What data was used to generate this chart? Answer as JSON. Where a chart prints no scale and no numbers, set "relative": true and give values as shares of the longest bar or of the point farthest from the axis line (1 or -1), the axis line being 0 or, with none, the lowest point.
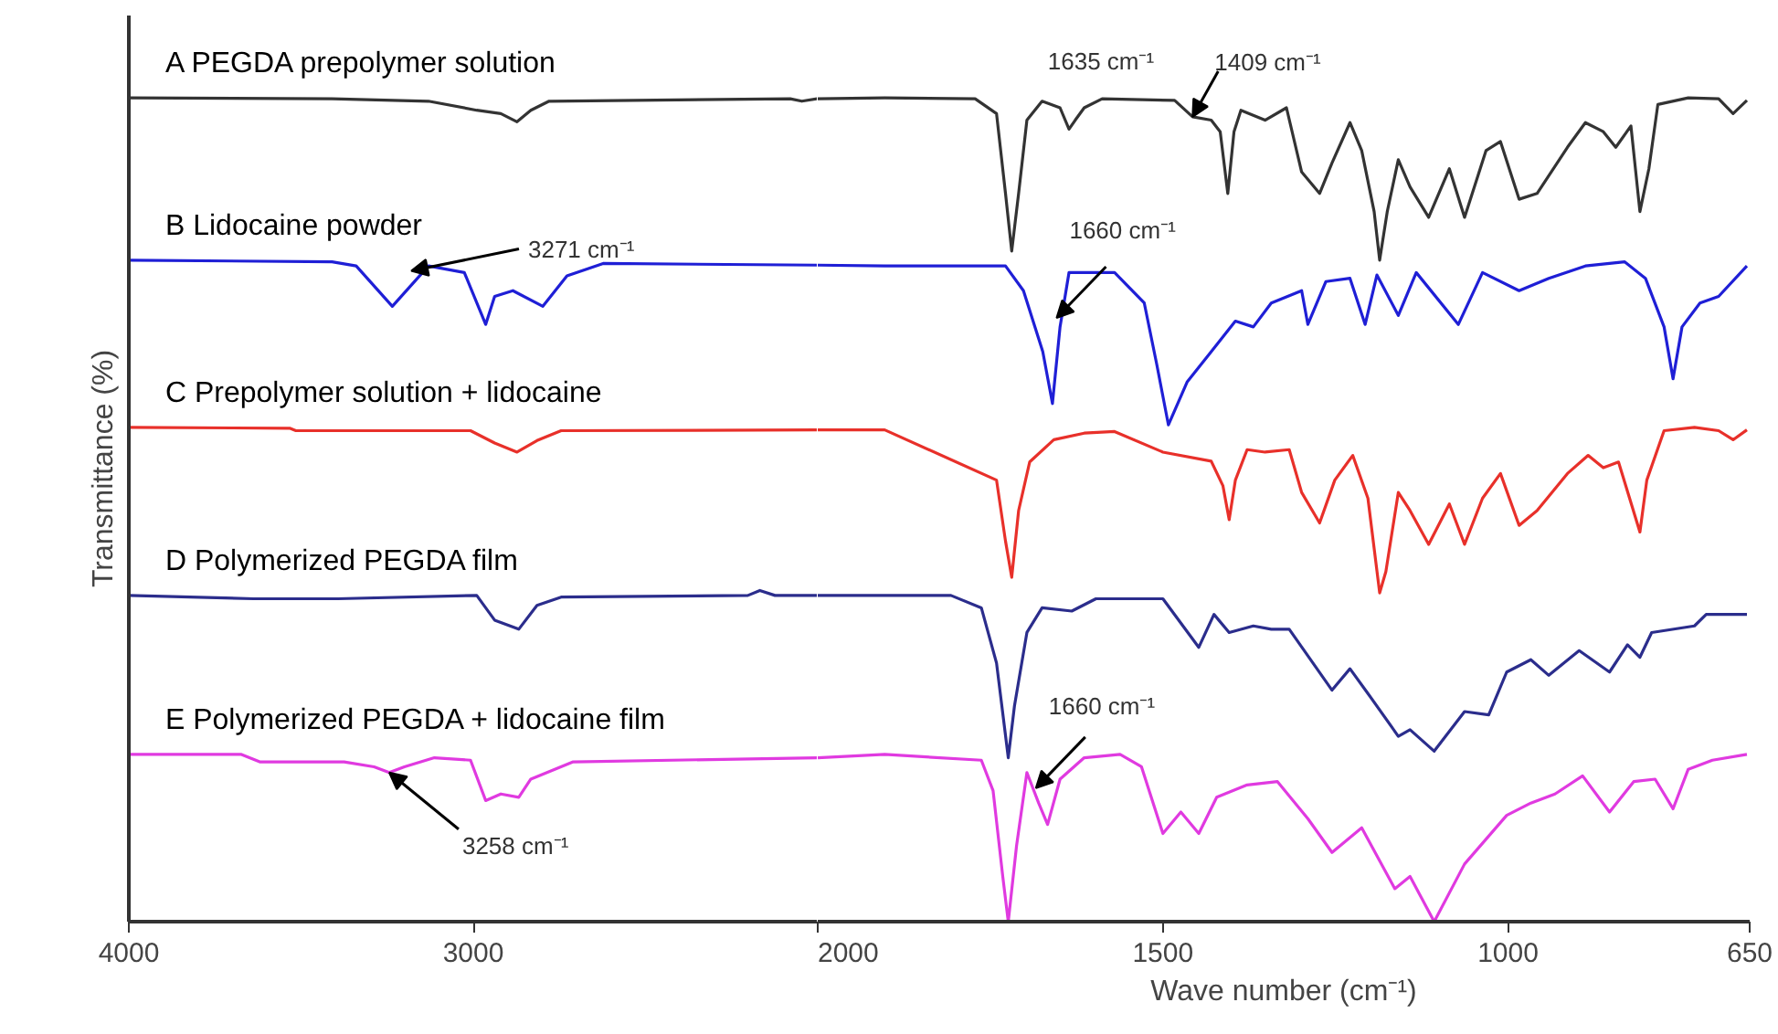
{
  "chart_data": [
    {
      "type": "line",
      "ylabel": "Transmittance (%)",
      "relative": true,
      "xlim": [
        4000,
        2000
      ],
      "xticks": [
        4000,
        3000
      ],
      "grid": false,
      "legend": false,
      "marker": "none",
      "line_style": "solid",
      "series": [
        {
          "name": "A  PEGDA prepolymer solution",
          "color": "#333333",
          "x": [
            4000,
            3410,
            3130,
            2990,
            2920,
            2873,
            2833,
            2780,
            2080,
            2046,
            2000
          ],
          "values": [
            1.0,
            0.999,
            0.996,
            0.985,
            0.981,
            0.971,
            0.985,
            0.996,
            0.999,
            0.996,
            0.999
          ]
        },
        {
          "name": "B  Lidocaine powder",
          "color": "#1f1fd6",
          "x": [
            4000,
            3410,
            3340,
            3235,
            3130,
            3026,
            2964,
            2938,
            2885,
            2798,
            2728,
            2623,
            2000
          ],
          "values": [
            0.803,
            0.801,
            0.796,
            0.747,
            0.796,
            0.788,
            0.725,
            0.759,
            0.766,
            0.747,
            0.784,
            0.799,
            0.797
          ]
        },
        {
          "name": "C  Prepolymer solution + lidocaine",
          "color": "#e8302a",
          "x": [
            4000,
            3533,
            3515,
            3008,
            2938,
            2873,
            2815,
            2745,
            2000
          ],
          "values": [
            0.6,
            0.599,
            0.596,
            0.596,
            0.581,
            0.57,
            0.584,
            0.596,
            0.597
          ]
        },
        {
          "name": "D  Polymerized PEGDA film",
          "color": "#2b2d8c",
          "x": [
            4000,
            3638,
            3393,
            2990,
            2938,
            2868,
            2815,
            2745,
            2203,
            2168,
            2124,
            2000
          ],
          "values": [
            0.396,
            0.392,
            0.392,
            0.396,
            0.366,
            0.355,
            0.384,
            0.394,
            0.396,
            0.402,
            0.396,
            0.396
          ]
        },
        {
          "name": "E  Polymerized PEGDA + lidocaine film",
          "color": "#e03ae0",
          "x": [
            4000,
            3673,
            3620,
            3375,
            3288,
            3244,
            3200,
            3113,
            3008,
            2964,
            2920,
            2868,
            2833,
            2710,
            2000
          ],
          "values": [
            0.203,
            0.203,
            0.194,
            0.194,
            0.188,
            0.181,
            0.188,
            0.199,
            0.196,
            0.147,
            0.155,
            0.151,
            0.173,
            0.194,
            0.199
          ]
        }
      ],
      "annotations": [
        {
          "text": "3271 cm⁻¹",
          "x": 3180,
          "y": 0.79
        },
        {
          "text": "3258 cm⁻¹",
          "x": 3244,
          "y": 0.181
        }
      ]
    },
    {
      "type": "line",
      "xlabel": "Wave number (cm⁻¹)",
      "relative": true,
      "xlim": [
        2000,
        650
      ],
      "xticks": [
        2000,
        1500,
        1000,
        650
      ],
      "grid": false,
      "legend": false,
      "marker": "none",
      "line_style": "solid",
      "series": [
        {
          "color": "#333333",
          "x": [
            2000,
            1903,
            1772,
            1741,
            1728,
            1719,
            1709,
            1697,
            1675,
            1649,
            1636,
            1627,
            1614,
            1588,
            1483,
            1457,
            1430,
            1417,
            1406,
            1397,
            1387,
            1352,
            1321,
            1299,
            1273,
            1255,
            1229,
            1212,
            1194,
            1186,
            1175,
            1159,
            1142,
            1115,
            1085,
            1063,
            1032,
            1011,
            984,
            958,
            914,
            888,
            862,
            844,
            822,
            809,
            796,
            783,
            739,
            695,
            674,
            654
          ],
          "values": [
            0.999,
            1.0,
            0.999,
            0.981,
            0.884,
            0.814,
            0.884,
            0.973,
            0.996,
            0.988,
            0.962,
            0.973,
            0.988,
            0.999,
            0.997,
            0.977,
            0.973,
            0.959,
            0.884,
            0.959,
            0.985,
            0.973,
            0.988,
            0.91,
            0.884,
            0.921,
            0.97,
            0.936,
            0.862,
            0.803,
            0.862,
            0.925,
            0.892,
            0.855,
            0.914,
            0.855,
            0.936,
            0.947,
            0.877,
            0.884,
            0.94,
            0.97,
            0.959,
            0.94,
            0.966,
            0.862,
            0.914,
            0.992,
            1.0,
            0.999,
            0.981,
            0.997
          ]
        },
        {
          "color": "#1f1fd6",
          "x": [
            2000,
            1903,
            1728,
            1702,
            1674,
            1660,
            1649,
            1636,
            1570,
            1527,
            1509,
            1492,
            1465,
            1430,
            1395,
            1369,
            1343,
            1299,
            1290,
            1264,
            1229,
            1207,
            1190,
            1159,
            1133,
            1072,
            1037,
            984,
            941,
            888,
            831,
            801,
            774,
            761,
            748,
            722,
            695,
            654
          ],
          "values": [
            0.797,
            0.796,
            0.796,
            0.766,
            0.692,
            0.629,
            0.722,
            0.788,
            0.788,
            0.751,
            0.677,
            0.603,
            0.655,
            0.692,
            0.729,
            0.722,
            0.751,
            0.766,
            0.725,
            0.777,
            0.781,
            0.725,
            0.785,
            0.736,
            0.788,
            0.725,
            0.788,
            0.766,
            0.781,
            0.796,
            0.801,
            0.781,
            0.722,
            0.659,
            0.722,
            0.751,
            0.759,
            0.796
          ]
        },
        {
          "color": "#e8302a",
          "x": [
            2000,
            1903,
            1741,
            1728,
            1719,
            1709,
            1693,
            1658,
            1614,
            1570,
            1500,
            1430,
            1413,
            1404,
            1395,
            1378,
            1352,
            1317,
            1299,
            1273,
            1251,
            1225,
            1203,
            1186,
            1177,
            1159,
            1142,
            1115,
            1085,
            1063,
            1037,
            1011,
            984,
            958,
            914,
            884,
            862,
            840,
            809,
            799,
            774,
            730,
            695,
            674,
            654
          ],
          "values": [
            0.597,
            0.597,
            0.536,
            0.462,
            0.418,
            0.499,
            0.558,
            0.585,
            0.593,
            0.595,
            0.57,
            0.559,
            0.529,
            0.488,
            0.536,
            0.573,
            0.57,
            0.573,
            0.521,
            0.484,
            0.536,
            0.566,
            0.514,
            0.399,
            0.425,
            0.521,
            0.499,
            0.458,
            0.507,
            0.458,
            0.514,
            0.544,
            0.481,
            0.499,
            0.544,
            0.566,
            0.551,
            0.558,
            0.473,
            0.536,
            0.596,
            0.6,
            0.596,
            0.585,
            0.597
          ]
        },
        {
          "color": "#2b2d8c",
          "x": [
            2000,
            1903,
            1807,
            1763,
            1741,
            1724,
            1715,
            1697,
            1675,
            1632,
            1597,
            1500,
            1448,
            1426,
            1404,
            1369,
            1343,
            1317,
            1255,
            1229,
            1203,
            1159,
            1142,
            1107,
            1063,
            1028,
            1002,
            967,
            941,
            897,
            853,
            827,
            809,
            792,
            730,
            713,
            654
          ],
          "values": [
            0.396,
            0.396,
            0.396,
            0.381,
            0.314,
            0.199,
            0.262,
            0.351,
            0.381,
            0.377,
            0.392,
            0.392,
            0.333,
            0.373,
            0.351,
            0.359,
            0.355,
            0.355,
            0.281,
            0.307,
            0.277,
            0.225,
            0.233,
            0.207,
            0.255,
            0.251,
            0.303,
            0.318,
            0.299,
            0.329,
            0.303,
            0.336,
            0.321,
            0.351,
            0.359,
            0.373,
            0.373
          ]
        },
        {
          "color": "#e03ae0",
          "x": [
            2000,
            1903,
            1763,
            1746,
            1732,
            1724,
            1712,
            1697,
            1680,
            1667,
            1649,
            1614,
            1562,
            1531,
            1500,
            1474,
            1448,
            1422,
            1378,
            1334,
            1290,
            1255,
            1212,
            1164,
            1142,
            1107,
            1063,
            1002,
            967,
            932,
            892,
            853,
            818,
            787,
            761,
            739,
            704,
            654
          ],
          "values": [
            0.199,
            0.203,
            0.196,
            0.159,
            0.055,
            0.0,
            0.092,
            0.181,
            0.144,
            0.118,
            0.173,
            0.199,
            0.203,
            0.188,
            0.107,
            0.133,
            0.107,
            0.151,
            0.166,
            0.17,
            0.125,
            0.084,
            0.114,
            0.04,
            0.055,
            0.0,
            0.07,
            0.129,
            0.144,
            0.155,
            0.177,
            0.133,
            0.17,
            0.173,
            0.137,
            0.185,
            0.196,
            0.203
          ]
        }
      ],
      "annotations": [
        {
          "text": "1635 cm⁻¹",
          "x": 1635,
          "y": 0.962
        },
        {
          "text": "1409 cm⁻¹",
          "x": 1457,
          "y": 0.977
        },
        {
          "text": "1660 cm⁻¹",
          "x": 1654,
          "y": 0.733
        },
        {
          "text": "1660 cm⁻¹",
          "x": 1684,
          "y": 0.162
        }
      ]
    }
  ]
}
